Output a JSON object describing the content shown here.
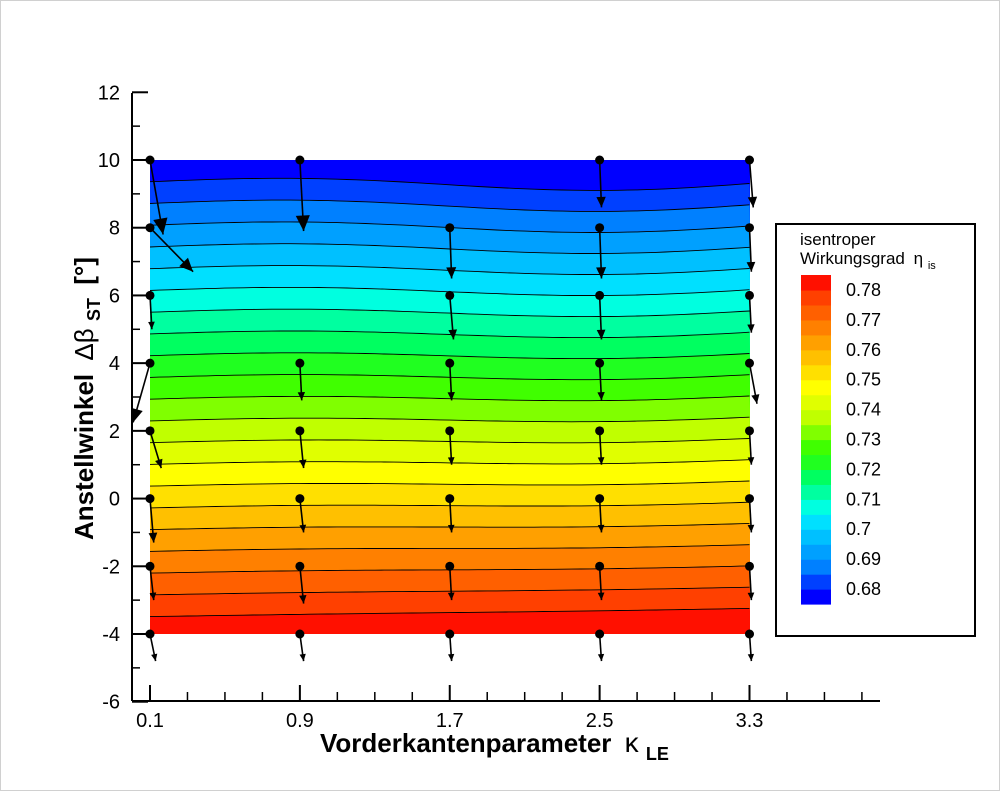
{
  "chart_data": {
    "type": "contour",
    "xlabel": "Vorderkantenparameter",
    "xlabel_symbol": "κ",
    "xlabel_subscript": "LE",
    "ylabel": "Anstellwinkel",
    "ylabel_symbol": "Δβ",
    "ylabel_subscript": "ST",
    "ylabel_unit": "[°]",
    "xlim": [
      0,
      4.07
    ],
    "ylim": [
      -6,
      12
    ],
    "x_ticks": [
      0.1,
      0.9,
      1.7,
      2.5,
      3.3
    ],
    "x_tick_labels": [
      "0.1",
      "0.9",
      "1.7",
      "2.5",
      "3.3"
    ],
    "y_ticks": [
      -6,
      -4,
      -2,
      0,
      2,
      4,
      6,
      8,
      10,
      12
    ],
    "y_tick_labels": [
      "-6",
      "-4",
      "-2",
      "0",
      "2",
      "4",
      "6",
      "8",
      "10",
      "12"
    ],
    "colorbar": {
      "title_line1": "isentroper",
      "title_line2": "Wirkungsgrad",
      "symbol": "η",
      "symbol_subscript": "is",
      "min": 0.675,
      "max": 0.785,
      "step": 0.005,
      "tick_values": [
        0.78,
        0.77,
        0.76,
        0.75,
        0.74,
        0.73,
        0.72,
        0.71,
        0.7,
        0.69,
        0.68
      ],
      "tick_labels": [
        "0.78",
        "0.77",
        "0.76",
        "0.75",
        "0.74",
        "0.73",
        "0.72",
        "0.71",
        "0.7",
        "0.69",
        "0.68"
      ],
      "colors": [
        "#0000ff",
        "#0040ff",
        "#0080ff",
        "#00a0ff",
        "#00c0ff",
        "#00e0ff",
        "#00ffe0",
        "#00ffa0",
        "#00ff60",
        "#20ff20",
        "#40ff00",
        "#80ff00",
        "#c0ff00",
        "#e0ff00",
        "#ffff00",
        "#ffe000",
        "#ffc000",
        "#ffa000",
        "#ff8000",
        "#ff6000",
        "#ff4000",
        "#ff1000"
      ]
    },
    "field_extent": {
      "x": [
        0.1,
        3.3
      ],
      "y": [
        -4,
        10
      ]
    },
    "eta_bottom": 0.785,
    "eta_top": 0.675,
    "vectors_note": "",
    "vectors": [
      {
        "x": 0.1,
        "y": 10,
        "dx": 0.07,
        "dy": -2.2
      },
      {
        "x": 0.9,
        "y": 10,
        "dx": 0.02,
        "dy": -2.1
      },
      {
        "x": 2.5,
        "y": 10,
        "dx": 0.01,
        "dy": -1.4
      },
      {
        "x": 3.3,
        "y": 10,
        "dx": 0.02,
        "dy": -1.4
      },
      {
        "x": 0.1,
        "y": 8,
        "dx": 0.23,
        "dy": -1.3
      },
      {
        "x": 1.7,
        "y": 8,
        "dx": 0.01,
        "dy": -1.5
      },
      {
        "x": 2.5,
        "y": 8,
        "dx": 0.01,
        "dy": -1.5
      },
      {
        "x": 3.3,
        "y": 8,
        "dx": 0.01,
        "dy": -1.3
      },
      {
        "x": 0.1,
        "y": 6,
        "dx": 0.01,
        "dy": -1.0
      },
      {
        "x": 1.7,
        "y": 6,
        "dx": 0.02,
        "dy": -1.3
      },
      {
        "x": 2.5,
        "y": 6,
        "dx": 0.01,
        "dy": -1.3
      },
      {
        "x": 3.3,
        "y": 6,
        "dx": 0.01,
        "dy": -1.1
      },
      {
        "x": 0.1,
        "y": 4,
        "dx": -0.09,
        "dy": -1.75
      },
      {
        "x": 0.9,
        "y": 4,
        "dx": 0.01,
        "dy": -1.1
      },
      {
        "x": 1.7,
        "y": 4,
        "dx": 0.01,
        "dy": -1.1
      },
      {
        "x": 2.5,
        "y": 4,
        "dx": 0.01,
        "dy": -1.1
      },
      {
        "x": 3.3,
        "y": 4,
        "dx": 0.04,
        "dy": -1.2
      },
      {
        "x": 0.1,
        "y": 2,
        "dx": 0.06,
        "dy": -1.1
      },
      {
        "x": 0.9,
        "y": 2,
        "dx": 0.02,
        "dy": -1.1
      },
      {
        "x": 1.7,
        "y": 2,
        "dx": 0.01,
        "dy": -1.0
      },
      {
        "x": 2.5,
        "y": 2,
        "dx": 0.01,
        "dy": -1.0
      },
      {
        "x": 3.3,
        "y": 2,
        "dx": 0.01,
        "dy": -1.0
      },
      {
        "x": 0.1,
        "y": 0,
        "dx": 0.02,
        "dy": -1.3
      },
      {
        "x": 0.9,
        "y": 0,
        "dx": 0.02,
        "dy": -1.0
      },
      {
        "x": 1.7,
        "y": 0,
        "dx": 0.01,
        "dy": -1.0
      },
      {
        "x": 2.5,
        "y": 0,
        "dx": 0.01,
        "dy": -1.0
      },
      {
        "x": 3.3,
        "y": 0,
        "dx": 0.01,
        "dy": -1.0
      },
      {
        "x": 0.1,
        "y": -2,
        "dx": 0.02,
        "dy": -1.0
      },
      {
        "x": 0.9,
        "y": -2,
        "dx": 0.02,
        "dy": -1.1
      },
      {
        "x": 1.7,
        "y": -2,
        "dx": 0.01,
        "dy": -1.0
      },
      {
        "x": 2.5,
        "y": -2,
        "dx": 0.01,
        "dy": -1.0
      },
      {
        "x": 3.3,
        "y": -2,
        "dx": 0.01,
        "dy": -1.0
      },
      {
        "x": 0.1,
        "y": -4,
        "dx": 0.03,
        "dy": -0.8
      },
      {
        "x": 0.9,
        "y": -4,
        "dx": 0.02,
        "dy": -0.8
      },
      {
        "x": 1.7,
        "y": -4,
        "dx": 0.01,
        "dy": -0.8
      },
      {
        "x": 2.5,
        "y": -4,
        "dx": 0.01,
        "dy": -0.8
      },
      {
        "x": 3.3,
        "y": -4,
        "dx": 0.01,
        "dy": -0.8
      }
    ]
  }
}
